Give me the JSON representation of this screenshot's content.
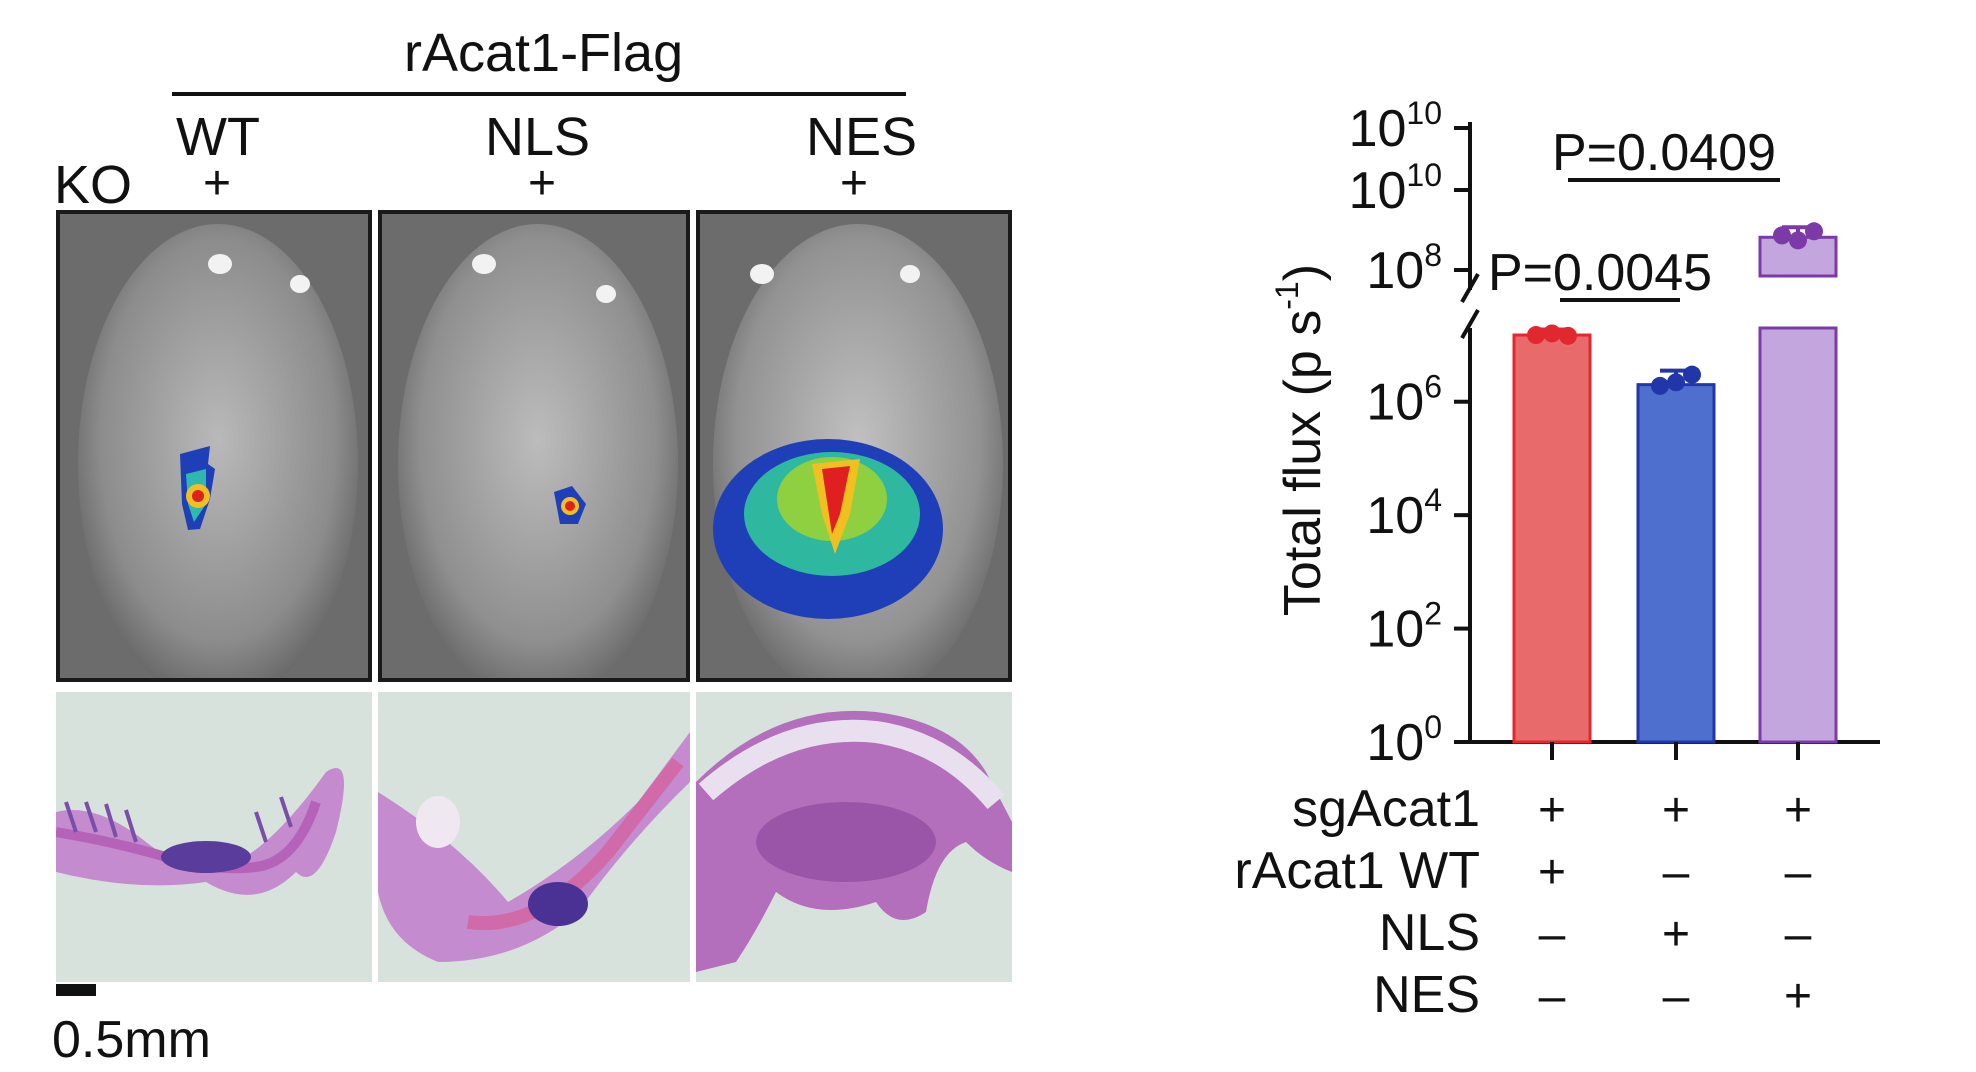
{
  "left_figure": {
    "group_title": "rAcat1-Flag",
    "ko_label": "KO",
    "columns": [
      {
        "label": "WT",
        "sign": "+"
      },
      {
        "label": "NLS",
        "sign": "+"
      },
      {
        "label": "NES",
        "sign": "+"
      }
    ],
    "scale_bar_label": "0.5mm"
  },
  "chart_data": {
    "type": "bar",
    "ylabel": "Total flux (p s",
    "ylabel_sup": "-1",
    "yscale": "log",
    "broken_axis": true,
    "y_ticks_lower": [
      {
        "base": "10",
        "exp": "0",
        "value": 1
      },
      {
        "base": "10",
        "exp": "2",
        "value": 100
      },
      {
        "base": "10",
        "exp": "4",
        "value": 10000
      },
      {
        "base": "10",
        "exp": "6",
        "value": 1000000
      }
    ],
    "y_ticks_upper": [
      {
        "base": "10",
        "exp": "8"
      },
      {
        "base": "10",
        "exp": "10"
      },
      {
        "base": "10",
        "exp": "10"
      }
    ],
    "categories": [
      "WT",
      "NLS",
      "NES"
    ],
    "values": [
      15000000,
      2000000,
      280000000
    ],
    "points": [
      [
        15000000,
        16000000,
        14500000
      ],
      [
        1900000,
        2200000,
        3000000
      ],
      [
        300000000,
        250000000,
        350000000
      ]
    ],
    "colors": {
      "WT": "#e96a6a",
      "NLS": "#4f6fcf",
      "NES": "#c3a6dd"
    },
    "point_colors": {
      "WT": "#e0282e",
      "NLS": "#2136a8",
      "NES": "#7c39a8"
    },
    "comparisons": [
      {
        "between": [
          "WT",
          "NLS"
        ],
        "label": "P=0.0045"
      },
      {
        "between": [
          "NLS",
          "NES"
        ],
        "label": "P=0.0409"
      }
    ],
    "condition_table": {
      "rows": [
        {
          "label": "sgAcat1",
          "marks": [
            "+",
            "+",
            "+"
          ]
        },
        {
          "label": "rAcat1 WT",
          "marks": [
            "+",
            "–",
            "–"
          ]
        },
        {
          "label": "NLS",
          "marks": [
            "–",
            "+",
            "–"
          ]
        },
        {
          "label": "NES",
          "marks": [
            "–",
            "–",
            "+"
          ]
        }
      ]
    }
  }
}
